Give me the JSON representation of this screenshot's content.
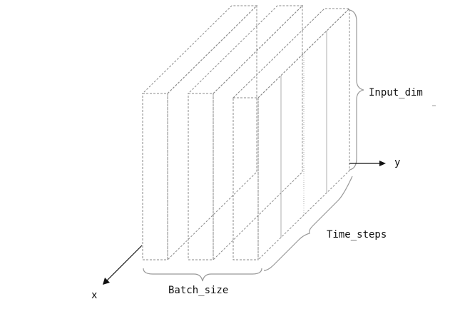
{
  "labels": {
    "input_dim": "Input_dim",
    "time_steps": "Time_steps",
    "batch_size": "Batch_size",
    "axis_x": "x",
    "axis_y": "y"
  },
  "diagram": {
    "slab_count": 3,
    "time_step_divisions": 4
  }
}
